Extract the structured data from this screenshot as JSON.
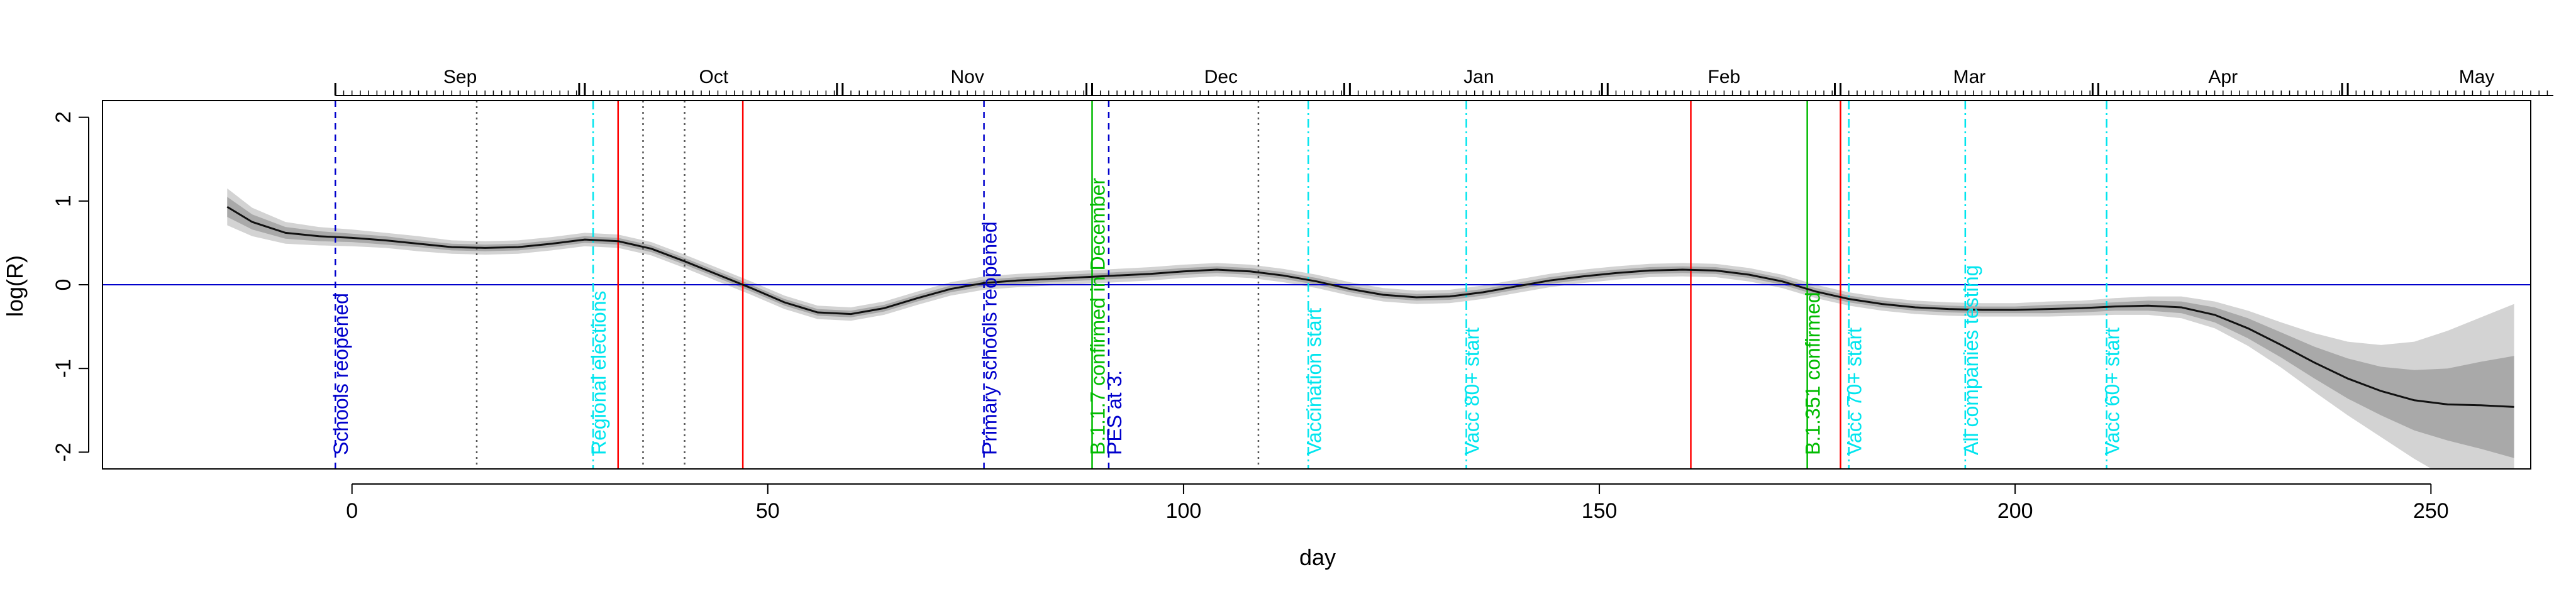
{
  "chart_data": {
    "type": "line",
    "title": "",
    "xlabel": "day",
    "ylabel": "log(R)",
    "xlim": [
      -30,
      262
    ],
    "ylim": [
      -2.2,
      2.2
    ],
    "x_ticks": [
      0,
      50,
      100,
      150,
      200,
      250
    ],
    "y_ticks": [
      -2,
      -1,
      0,
      1,
      2
    ],
    "reference_line_y": 0,
    "grid": false,
    "legend": "none",
    "months": [
      {
        "label": "Sep",
        "start": -2,
        "end": 28
      },
      {
        "label": "Oct",
        "start": 28,
        "end": 59
      },
      {
        "label": "Nov",
        "start": 59,
        "end": 89
      },
      {
        "label": "Dec",
        "start": 89,
        "end": 120
      },
      {
        "label": "Jan",
        "start": 120,
        "end": 151
      },
      {
        "label": "Feb",
        "start": 151,
        "end": 179
      },
      {
        "label": "Mar",
        "start": 179,
        "end": 210
      },
      {
        "label": "Apr",
        "start": 210,
        "end": 240
      },
      {
        "label": "May",
        "start": 240,
        "end": 271
      }
    ],
    "series": [
      {
        "x": [
          -15,
          -12,
          -8,
          -4,
          0,
          4,
          8,
          12,
          16,
          20,
          24,
          28,
          32,
          36,
          40,
          44,
          48,
          52,
          56,
          60,
          64,
          68,
          72,
          76,
          80,
          84,
          88,
          92,
          96,
          100,
          104,
          108,
          112,
          116,
          120,
          124,
          128,
          132,
          136,
          140,
          144,
          148,
          152,
          156,
          160,
          164,
          168,
          172,
          176,
          180,
          184,
          188,
          192,
          196,
          200,
          204,
          208,
          212,
          216,
          220,
          224,
          228,
          232,
          236,
          240,
          244,
          248,
          252,
          256,
          260
        ],
        "y": [
          0.93,
          0.75,
          0.62,
          0.58,
          0.56,
          0.53,
          0.49,
          0.45,
          0.44,
          0.45,
          0.49,
          0.54,
          0.52,
          0.43,
          0.28,
          0.12,
          -0.04,
          -0.21,
          -0.33,
          -0.35,
          -0.28,
          -0.16,
          -0.05,
          0.02,
          0.05,
          0.07,
          0.09,
          0.11,
          0.13,
          0.16,
          0.18,
          0.16,
          0.11,
          0.04,
          -0.05,
          -0.12,
          -0.15,
          -0.14,
          -0.09,
          -0.02,
          0.05,
          0.1,
          0.14,
          0.17,
          0.18,
          0.17,
          0.12,
          0.04,
          -0.08,
          -0.17,
          -0.23,
          -0.27,
          -0.29,
          -0.3,
          -0.3,
          -0.29,
          -0.28,
          -0.26,
          -0.25,
          -0.27,
          -0.36,
          -0.52,
          -0.72,
          -0.93,
          -1.12,
          -1.27,
          -1.38,
          -1.43,
          -1.44,
          -1.46
        ],
        "inner_halfwidth": [
          0.12,
          0.09,
          0.07,
          0.06,
          0.05,
          0.05,
          0.04,
          0.04,
          0.04,
          0.04,
          0.04,
          0.04,
          0.04,
          0.04,
          0.04,
          0.04,
          0.04,
          0.04,
          0.04,
          0.04,
          0.04,
          0.04,
          0.04,
          0.04,
          0.04,
          0.04,
          0.04,
          0.04,
          0.04,
          0.04,
          0.04,
          0.04,
          0.04,
          0.04,
          0.04,
          0.04,
          0.04,
          0.04,
          0.04,
          0.04,
          0.04,
          0.04,
          0.04,
          0.04,
          0.04,
          0.04,
          0.04,
          0.04,
          0.04,
          0.04,
          0.04,
          0.04,
          0.04,
          0.04,
          0.04,
          0.05,
          0.05,
          0.05,
          0.06,
          0.07,
          0.09,
          0.12,
          0.15,
          0.19,
          0.24,
          0.29,
          0.36,
          0.43,
          0.52,
          0.61
        ],
        "outer_halfwidth": [
          0.22,
          0.17,
          0.13,
          0.11,
          0.1,
          0.09,
          0.09,
          0.08,
          0.08,
          0.08,
          0.08,
          0.08,
          0.08,
          0.08,
          0.08,
          0.08,
          0.08,
          0.08,
          0.08,
          0.08,
          0.08,
          0.08,
          0.08,
          0.08,
          0.08,
          0.08,
          0.08,
          0.08,
          0.08,
          0.08,
          0.08,
          0.08,
          0.08,
          0.08,
          0.08,
          0.08,
          0.08,
          0.08,
          0.08,
          0.08,
          0.08,
          0.08,
          0.08,
          0.08,
          0.08,
          0.08,
          0.08,
          0.08,
          0.08,
          0.08,
          0.08,
          0.08,
          0.08,
          0.08,
          0.08,
          0.09,
          0.09,
          0.1,
          0.11,
          0.13,
          0.16,
          0.21,
          0.27,
          0.35,
          0.44,
          0.55,
          0.7,
          0.88,
          1.05,
          1.23
        ]
      }
    ],
    "event_lines": [
      {
        "x": -2,
        "color": "#0000cc",
        "style": "dashed",
        "label": "Schools reopened"
      },
      {
        "x": 15,
        "color": "#555555",
        "style": "dotted",
        "label": ""
      },
      {
        "x": 29,
        "color": "#00e5ee",
        "style": "dashdot",
        "label": "Regional elections"
      },
      {
        "x": 32,
        "color": "#ff0000",
        "style": "solid",
        "label": ""
      },
      {
        "x": 35,
        "color": "#555555",
        "style": "dotted",
        "label": ""
      },
      {
        "x": 40,
        "color": "#555555",
        "style": "dotted",
        "label": ""
      },
      {
        "x": 47,
        "color": "#ff0000",
        "style": "solid",
        "label": ""
      },
      {
        "x": 76,
        "color": "#0000cc",
        "style": "dashed",
        "label": "Primary schools reopened"
      },
      {
        "x": 89,
        "color": "#00bb00",
        "style": "solid",
        "label": "B.1.1.7 confirmed in December"
      },
      {
        "x": 91,
        "color": "#0000cc",
        "style": "dashed",
        "label": "PES at 3."
      },
      {
        "x": 109,
        "color": "#555555",
        "style": "dotted",
        "label": ""
      },
      {
        "x": 115,
        "color": "#00e5ee",
        "style": "dashdot",
        "label": "Vaccination start"
      },
      {
        "x": 134,
        "color": "#00e5ee",
        "style": "dashdot",
        "label": "Vacc 80+ start"
      },
      {
        "x": 161,
        "color": "#ff0000",
        "style": "solid",
        "label": ""
      },
      {
        "x": 175,
        "color": "#00bb00",
        "style": "solid",
        "label": "B.1.351 confirmed"
      },
      {
        "x": 179,
        "color": "#ff0000",
        "style": "solid",
        "label": ""
      },
      {
        "x": 180,
        "color": "#00e5ee",
        "style": "dashdot",
        "label": "Vacc 70+ start"
      },
      {
        "x": 194,
        "color": "#00e5ee",
        "style": "dashdot",
        "label": "All companies testing"
      },
      {
        "x": 211,
        "color": "#00e5ee",
        "style": "dashdot",
        "label": "Vacc 60+ start"
      }
    ]
  }
}
